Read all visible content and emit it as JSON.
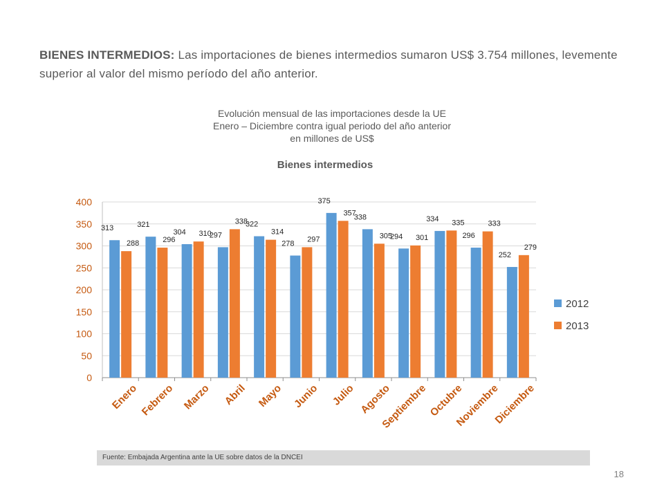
{
  "headline": {
    "lead": "BIENES INTERMEDIOS:",
    "text": " Las importaciones de bienes intermedios sumaron US$  3.754 millones, levemente  superior al valor del mismo período del año anterior."
  },
  "subtitle": {
    "line1": "Evolución mensual de las importaciones desde la UE",
    "line2": "Enero – Diciembre contra igual periodo del año anterior",
    "line3": "en millones de US$"
  },
  "chart_data": {
    "type": "bar",
    "title": "Bienes intermedios",
    "categories": [
      "Enero",
      "Febrero",
      "Marzo",
      "Abril",
      "Mayo",
      "Junio",
      "Julio",
      "Agosto",
      "Septiembre",
      "Octubre",
      "Noviembre",
      "Diciembre"
    ],
    "series": [
      {
        "name": "2012",
        "color": "#5b9bd5",
        "values": [
          313,
          321,
          304,
          297,
          322,
          278,
          375,
          338,
          294,
          334,
          296,
          252
        ]
      },
      {
        "name": "2013",
        "color": "#ed7d31",
        "values": [
          288,
          296,
          310,
          338,
          314,
          297,
          357,
          305,
          301,
          335,
          333,
          279
        ]
      }
    ],
    "yticks": [
      0,
      50,
      100,
      150,
      200,
      250,
      300,
      350,
      400
    ],
    "ylim": [
      0,
      400
    ],
    "grid": true,
    "legend": "right",
    "tick_color": "#c55a11"
  },
  "footer": {
    "source": "Fuente: Embajada  Argentina ante la UE sobre datos de la DNCEI",
    "page_number": "18"
  }
}
